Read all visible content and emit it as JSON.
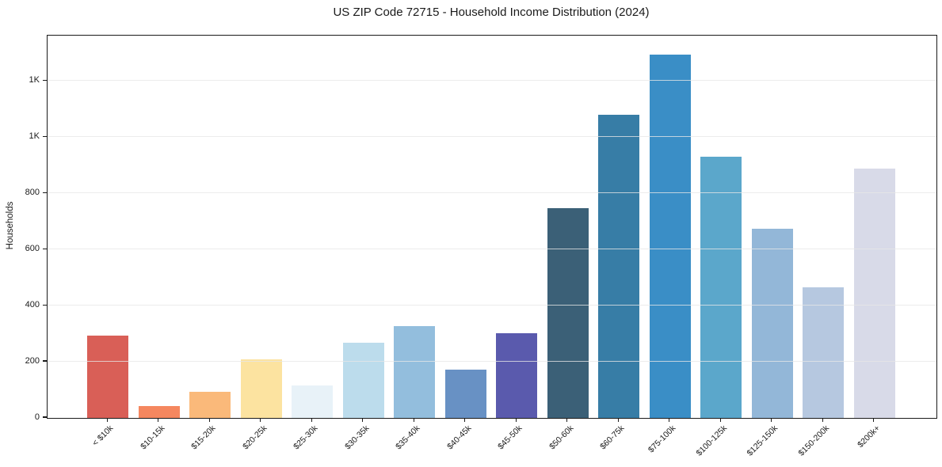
{
  "title": "US ZIP Code 72715 - Household Income Distribution (2024)",
  "chart_data": {
    "type": "bar",
    "title": "US ZIP Code 72715 - Household Income Distribution (2024)",
    "xlabel": "",
    "ylabel": "Households",
    "categories": [
      "< $10k",
      "$10-15k",
      "$15-20k",
      "$20-25k",
      "$25-30k",
      "$30-35k",
      "$35-40k",
      "$40-45k",
      "$45-50k",
      "$50-60k",
      "$60-75k",
      "$75-100k",
      "$100-125k",
      "$125-150k",
      "$150-200k",
      "$200k+"
    ],
    "values": [
      294,
      41,
      92,
      209,
      115,
      269,
      326,
      173,
      301,
      746,
      1080,
      1294,
      932,
      675,
      464,
      887
    ],
    "bar_colors": [
      "#d95f57",
      "#f5875f",
      "#fab97a",
      "#fce3a0",
      "#e8f2f8",
      "#bcdcec",
      "#93bedd",
      "#6891c4",
      "#5a5aad",
      "#3b6077",
      "#377da6",
      "#3a8ec6",
      "#5ba7cb",
      "#93b7d8",
      "#b6c8e0",
      "#d8dae8"
    ],
    "ylim": [
      0,
      1362
    ],
    "yticks": [
      {
        "value": 0,
        "label": "0"
      },
      {
        "value": 200,
        "label": "200"
      },
      {
        "value": 400,
        "label": "400"
      },
      {
        "value": 600,
        "label": "600"
      },
      {
        "value": 800,
        "label": "800"
      },
      {
        "value": 1000,
        "label": "1K"
      },
      {
        "value": 1200,
        "label": "1K"
      }
    ],
    "grid": "horizontal",
    "legend": "none",
    "background": "#ffffff",
    "axis_color": "#1a1a1a"
  }
}
